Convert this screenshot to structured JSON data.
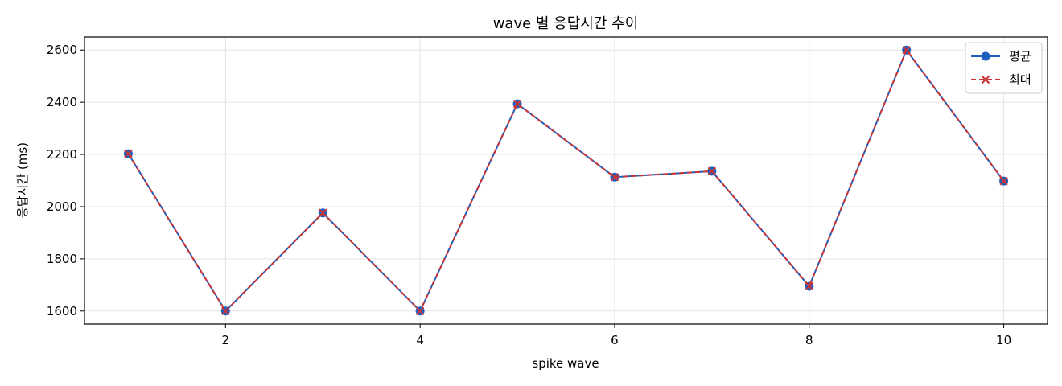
{
  "chart_data": {
    "type": "line",
    "title": "wave 별 응답시간 추이",
    "xlabel": "spike wave",
    "ylabel": "응답시간 (ms)",
    "x": [
      1,
      2,
      3,
      4,
      5,
      6,
      7,
      8,
      9,
      10
    ],
    "xlim": [
      0.55,
      10.45
    ],
    "ylim": [
      1550,
      2650
    ],
    "x_ticks": [
      2,
      4,
      6,
      8,
      10
    ],
    "y_ticks": [
      1600,
      1800,
      2000,
      2200,
      2400,
      2600
    ],
    "grid": true,
    "legend_position": "top-right",
    "series": [
      {
        "name": "평균",
        "values": [
          2203,
          1600,
          1976,
          1600,
          2394,
          2113,
          2136,
          1695,
          2600,
          2098
        ],
        "color": "#1f5fbf",
        "line_style": "solid",
        "marker": "circle"
      },
      {
        "name": "최대",
        "values": [
          2203,
          1600,
          1976,
          1600,
          2394,
          2113,
          2136,
          1695,
          2600,
          2098
        ],
        "color": "#cc3333",
        "line_style": "dashed",
        "marker": "x"
      }
    ]
  }
}
